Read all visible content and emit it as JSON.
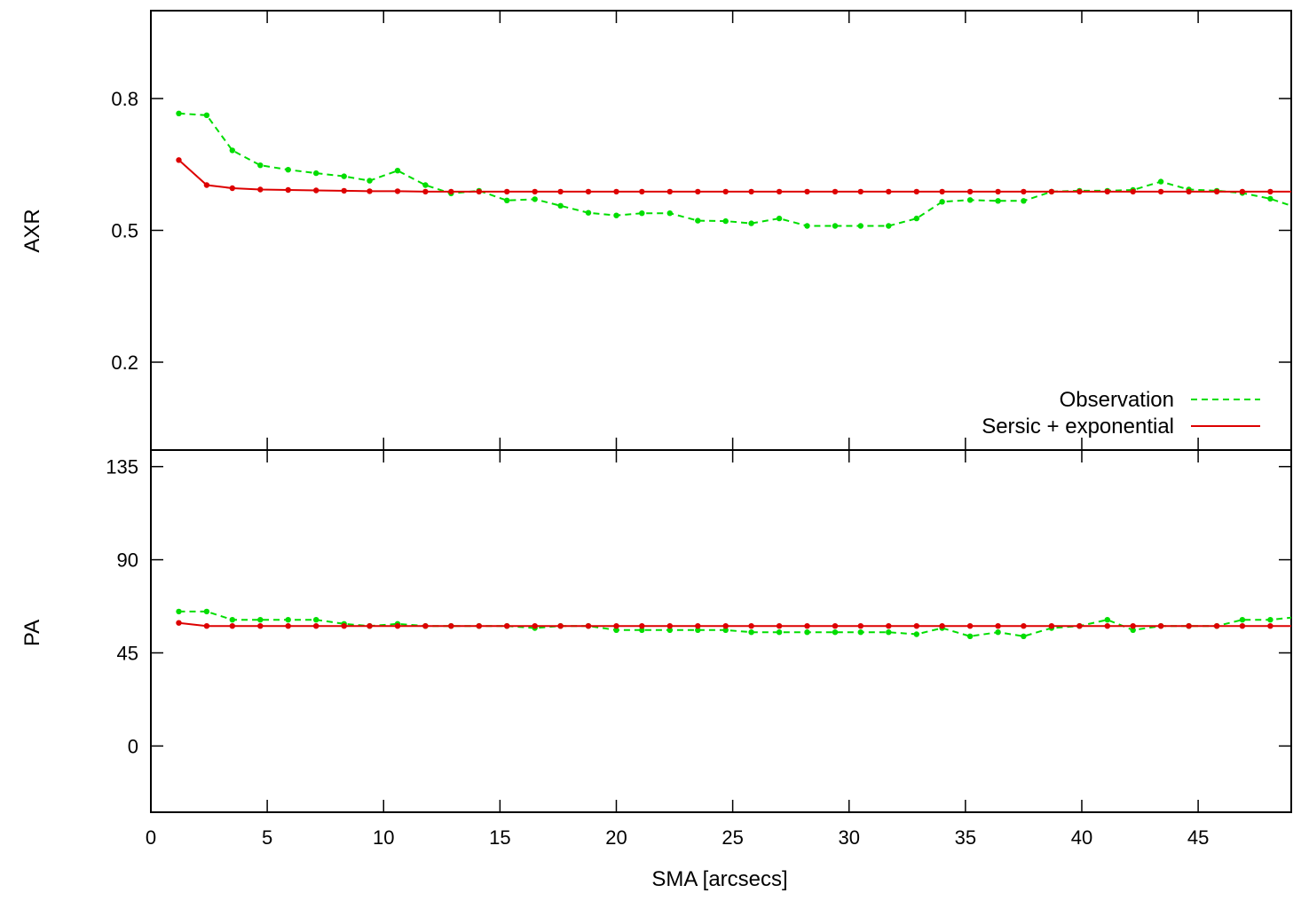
{
  "colors": {
    "observation": "#00dd00",
    "model": "#dd0000",
    "axis": "#000000"
  },
  "chart_data": [
    {
      "type": "line",
      "panel": "top",
      "ylabel": "AXR",
      "xlabel": "",
      "xlim": [
        0,
        49
      ],
      "ylim": [
        0.0,
        1.0
      ],
      "yticks": [
        "0.2",
        "0.5",
        "0.8"
      ],
      "ytick_values": [
        0.2,
        0.5,
        0.8
      ],
      "legend": {
        "placement": "bottom-right",
        "entries": [
          "Observation",
          "Sersic + exponential"
        ]
      },
      "series": [
        {
          "name": "Observation",
          "style": "dashed",
          "x": [
            1.2,
            2.4,
            3.5,
            4.7,
            5.9,
            7.1,
            8.3,
            9.4,
            10.6,
            11.8,
            12.9,
            14.1,
            15.3,
            16.5,
            17.6,
            18.8,
            20.0,
            21.1,
            22.3,
            23.5,
            24.7,
            25.8,
            27.0,
            28.2,
            29.4,
            30.5,
            31.7,
            32.9,
            34.0,
            35.2,
            36.4,
            37.5,
            38.7,
            39.9,
            41.1,
            42.2,
            43.4,
            44.6,
            45.8,
            46.9,
            48.1,
            49.0
          ],
          "y": [
            0.766,
            0.762,
            0.682,
            0.648,
            0.638,
            0.63,
            0.623,
            0.613,
            0.636,
            0.603,
            0.584,
            0.59,
            0.568,
            0.571,
            0.556,
            0.54,
            0.534,
            0.539,
            0.539,
            0.522,
            0.521,
            0.516,
            0.527,
            0.51,
            0.51,
            0.51,
            0.51,
            0.527,
            0.565,
            0.569,
            0.567,
            0.567,
            0.588,
            0.59,
            0.59,
            0.592,
            0.611,
            0.593,
            0.59,
            0.585,
            0.572,
            0.556
          ]
        },
        {
          "name": "Sersic + exponential",
          "style": "solid",
          "x": [
            1.2,
            2.4,
            3.5,
            4.7,
            5.9,
            7.1,
            8.3,
            9.4,
            10.6,
            11.8,
            12.9,
            14.1,
            15.3,
            16.5,
            17.6,
            18.8,
            20.0,
            21.1,
            22.3,
            23.5,
            24.7,
            25.8,
            27.0,
            28.2,
            29.4,
            30.5,
            31.7,
            32.9,
            34.0,
            35.2,
            36.4,
            37.5,
            38.7,
            39.9,
            41.1,
            42.2,
            43.4,
            44.6,
            45.8,
            46.9,
            48.1,
            49.0
          ],
          "y": [
            0.66,
            0.603,
            0.596,
            0.593,
            0.592,
            0.591,
            0.59,
            0.589,
            0.589,
            0.588,
            0.588,
            0.588,
            0.588,
            0.588,
            0.588,
            0.588,
            0.588,
            0.588,
            0.588,
            0.588,
            0.588,
            0.588,
            0.588,
            0.588,
            0.588,
            0.588,
            0.588,
            0.588,
            0.588,
            0.588,
            0.588,
            0.588,
            0.588,
            0.588,
            0.588,
            0.588,
            0.588,
            0.588,
            0.588,
            0.588,
            0.588,
            0.588
          ]
        }
      ]
    },
    {
      "type": "line",
      "panel": "bottom",
      "ylabel": "PA",
      "xlabel": "SMA [arcsecs]",
      "xlim": [
        0,
        49
      ],
      "ylim": [
        -32,
        143
      ],
      "xticks": [
        "0",
        "5",
        "10",
        "15",
        "20",
        "25",
        "30",
        "35",
        "40",
        "45"
      ],
      "xtick_values": [
        0,
        5,
        10,
        15,
        20,
        25,
        30,
        35,
        40,
        45
      ],
      "yticks": [
        "0",
        "45",
        "90",
        "135"
      ],
      "ytick_values": [
        0,
        45,
        90,
        135
      ],
      "series": [
        {
          "name": "Observation",
          "style": "dashed",
          "x": [
            1.2,
            2.4,
            3.5,
            4.7,
            5.9,
            7.1,
            8.3,
            9.4,
            10.6,
            11.8,
            12.9,
            14.1,
            15.3,
            16.5,
            17.6,
            18.8,
            20.0,
            21.1,
            22.3,
            23.5,
            24.7,
            25.8,
            27.0,
            28.2,
            29.4,
            30.5,
            31.7,
            32.9,
            34.0,
            35.2,
            36.4,
            37.5,
            38.7,
            39.9,
            41.1,
            42.2,
            43.4,
            44.6,
            45.8,
            46.9,
            48.1,
            49.0
          ],
          "y": [
            65,
            65,
            61,
            61,
            61,
            61,
            59,
            58,
            59,
            58,
            58,
            58,
            58,
            57,
            58,
            58,
            56,
            56,
            56,
            56,
            56,
            55,
            55,
            55,
            55,
            55,
            55,
            54,
            57,
            53,
            55,
            53,
            57,
            58,
            61,
            56,
            58,
            58,
            58,
            61,
            61,
            62
          ]
        },
        {
          "name": "Sersic + exponential",
          "style": "solid",
          "x": [
            1.2,
            2.4,
            3.5,
            4.7,
            5.9,
            7.1,
            8.3,
            9.4,
            10.6,
            11.8,
            12.9,
            14.1,
            15.3,
            16.5,
            17.6,
            18.8,
            20.0,
            21.1,
            22.3,
            23.5,
            24.7,
            25.8,
            27.0,
            28.2,
            29.4,
            30.5,
            31.7,
            32.9,
            34.0,
            35.2,
            36.4,
            37.5,
            38.7,
            39.9,
            41.1,
            42.2,
            43.4,
            44.6,
            45.8,
            46.9,
            48.1,
            49.0
          ],
          "y": [
            59.5,
            58,
            58,
            58,
            58,
            58,
            58,
            58,
            58,
            58,
            58,
            58,
            58,
            58,
            58,
            58,
            58,
            58,
            58,
            58,
            58,
            58,
            58,
            58,
            58,
            58,
            58,
            58,
            58,
            58,
            58,
            58,
            58,
            58,
            58,
            58,
            58,
            58,
            58,
            58,
            58,
            58
          ]
        }
      ]
    }
  ]
}
